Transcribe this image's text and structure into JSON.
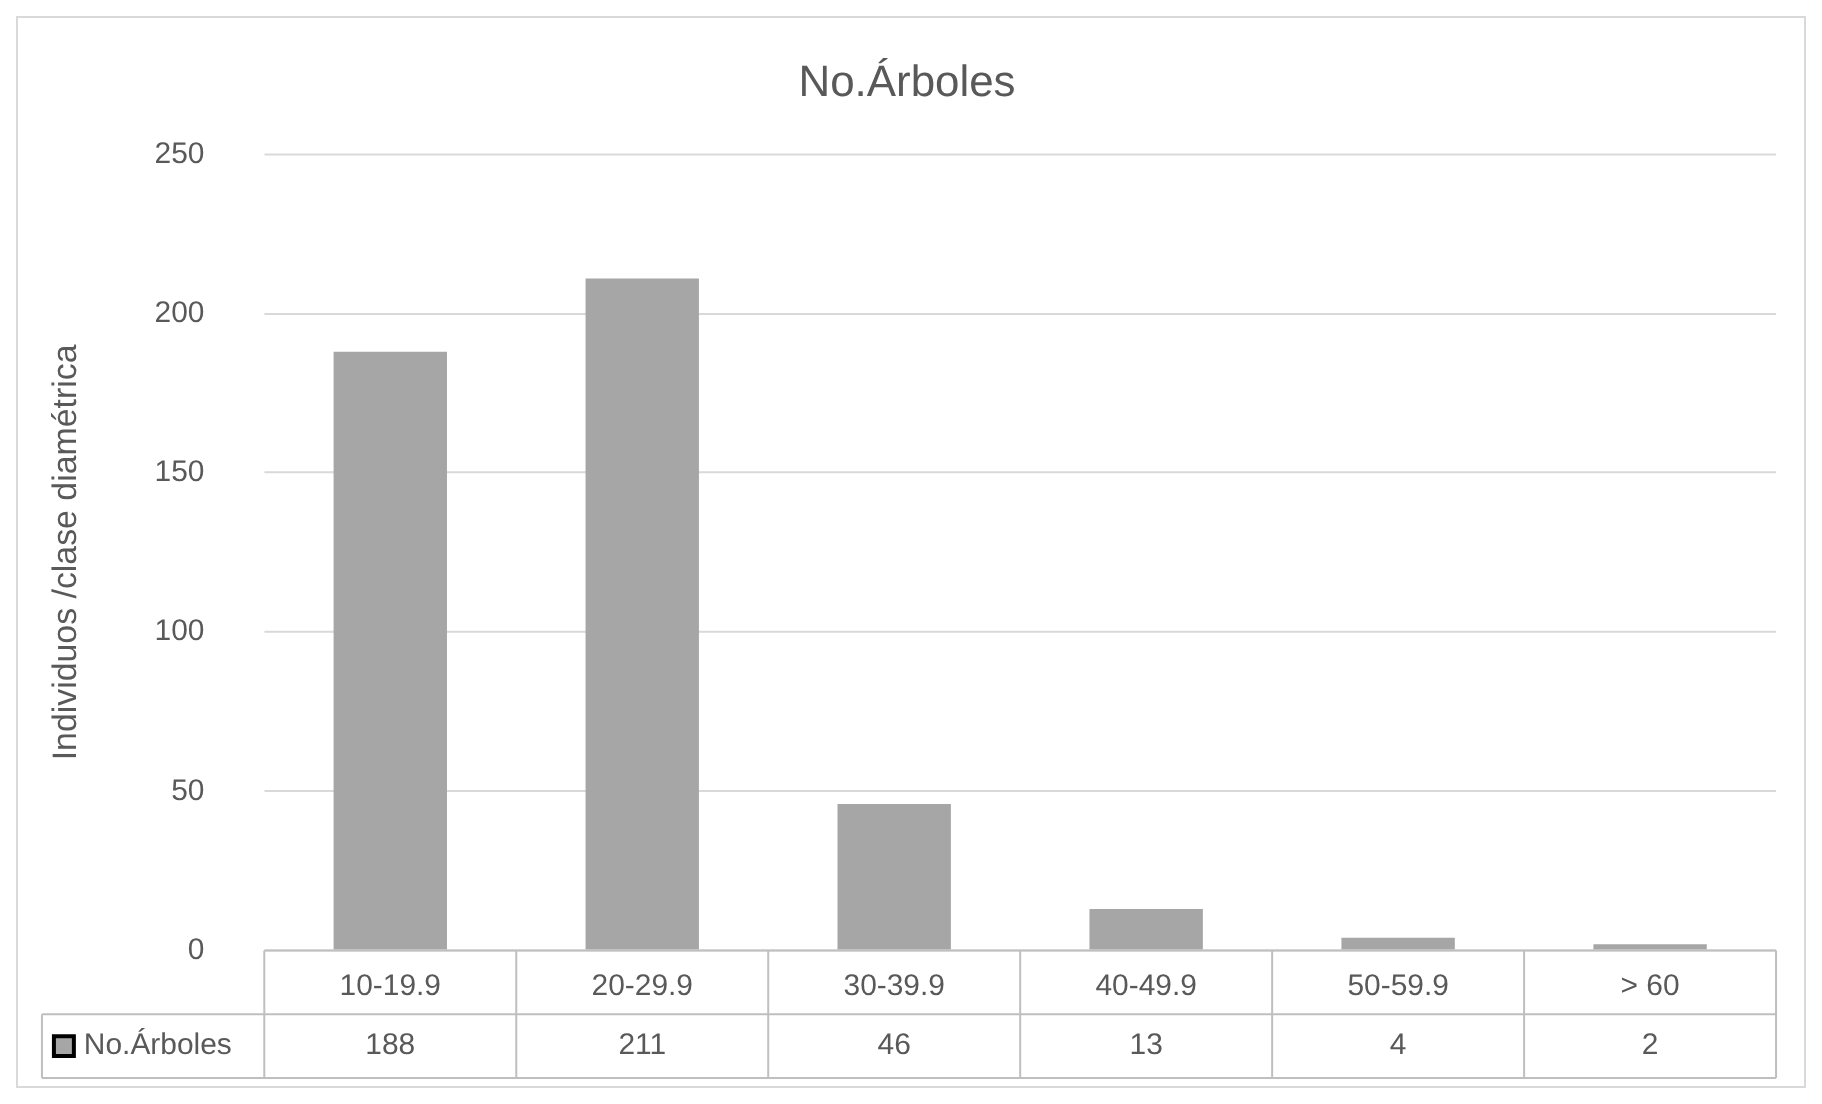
{
  "chart_data": {
    "type": "bar",
    "title": "No.Árboles",
    "ylabel": "Individuos /clase diamétrica",
    "categories": [
      "10-19.9",
      "20-29.9",
      "30-39.9",
      "40-49.9",
      "50-59.9",
      "> 60"
    ],
    "series": [
      {
        "name": "No.Árboles",
        "color": "#a6a6a6",
        "values": [
          188,
          211,
          46,
          13,
          4,
          2
        ]
      }
    ],
    "ylim": [
      0,
      250
    ],
    "yticks": [
      0,
      50,
      100,
      150,
      200,
      250
    ],
    "grid": "y",
    "legend": "bottom",
    "data_labels": true
  }
}
